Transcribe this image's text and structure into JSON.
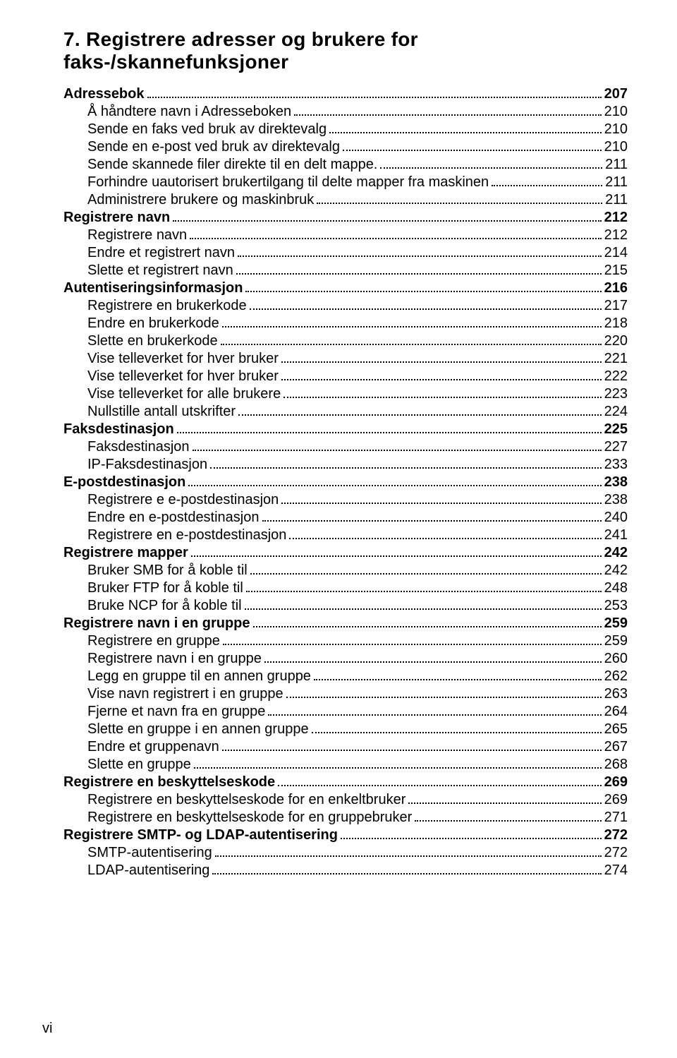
{
  "chapter": {
    "number": "7.",
    "title": "Registrere adresser og brukere for faks-/skannefunksjoner"
  },
  "toc": [
    {
      "level": 0,
      "label": "Adressebok",
      "page": "207"
    },
    {
      "level": 1,
      "label": "Å håndtere navn i Adresseboken",
      "page": "210"
    },
    {
      "level": 1,
      "label": "Sende en faks ved bruk av direktevalg",
      "page": "210"
    },
    {
      "level": 1,
      "label": "Sende en e-post ved bruk av direktevalg",
      "page": "210"
    },
    {
      "level": 1,
      "label": "Sende skannede filer direkte til en delt mappe.",
      "page": "211"
    },
    {
      "level": 1,
      "label": "Forhindre uautorisert brukertilgang til delte mapper fra maskinen",
      "page": "211"
    },
    {
      "level": 1,
      "label": "Administrere brukere og maskinbruk",
      "page": "211"
    },
    {
      "level": 0,
      "label": "Registrere navn",
      "page": "212"
    },
    {
      "level": 1,
      "label": "Registrere navn",
      "page": "212"
    },
    {
      "level": 1,
      "label": "Endre et registrert navn",
      "page": "214"
    },
    {
      "level": 1,
      "label": "Slette et registrert navn",
      "page": "215"
    },
    {
      "level": 0,
      "label": "Autentiseringsinformasjon",
      "page": "216"
    },
    {
      "level": 1,
      "label": "Registrere en brukerkode",
      "page": "217"
    },
    {
      "level": 1,
      "label": "Endre en brukerkode",
      "page": "218"
    },
    {
      "level": 1,
      "label": "Slette en brukerkode",
      "page": "220"
    },
    {
      "level": 1,
      "label": "Vise telleverket for hver bruker",
      "page": "221"
    },
    {
      "level": 1,
      "label": "Vise telleverket for hver bruker",
      "page": "222"
    },
    {
      "level": 1,
      "label": "Vise telleverket for alle brukere",
      "page": "223"
    },
    {
      "level": 1,
      "label": "Nullstille antall utskrifter",
      "page": "224"
    },
    {
      "level": 0,
      "label": "Faksdestinasjon",
      "page": "225"
    },
    {
      "level": 1,
      "label": "Faksdestinasjon",
      "page": "227"
    },
    {
      "level": 1,
      "label": "IP-Faksdestinasjon",
      "page": "233"
    },
    {
      "level": 0,
      "label": "E-postdestinasjon",
      "page": "238"
    },
    {
      "level": 1,
      "label": "Registrere e e-postdestinasjon",
      "page": "238"
    },
    {
      "level": 1,
      "label": "Endre en e-postdestinasjon",
      "page": "240"
    },
    {
      "level": 1,
      "label": "Registrere en e-postdestinasjon",
      "page": "241"
    },
    {
      "level": 0,
      "label": "Registrere mapper",
      "page": "242"
    },
    {
      "level": 1,
      "label": "Bruker SMB for å koble til",
      "page": "242"
    },
    {
      "level": 1,
      "label": "Bruker FTP for å koble til",
      "page": "248"
    },
    {
      "level": 1,
      "label": "Bruke NCP for å koble til",
      "page": "253"
    },
    {
      "level": 0,
      "label": "Registrere navn i en gruppe",
      "page": "259"
    },
    {
      "level": 1,
      "label": "Registrere en gruppe",
      "page": "259"
    },
    {
      "level": 1,
      "label": "Registrere navn i en gruppe",
      "page": "260"
    },
    {
      "level": 1,
      "label": "Legg en gruppe til en annen gruppe",
      "page": "262"
    },
    {
      "level": 1,
      "label": "Vise navn registrert i en gruppe",
      "page": "263"
    },
    {
      "level": 1,
      "label": "Fjerne et navn fra en gruppe",
      "page": "264"
    },
    {
      "level": 1,
      "label": "Slette en gruppe i en annen gruppe",
      "page": "265"
    },
    {
      "level": 1,
      "label": "Endre et gruppenavn",
      "page": "267"
    },
    {
      "level": 1,
      "label": "Slette en gruppe",
      "page": "268"
    },
    {
      "level": 0,
      "label": "Registrere en beskyttelseskode",
      "page": "269"
    },
    {
      "level": 1,
      "label": "Registrere en beskyttelseskode for en enkeltbruker",
      "page": "269"
    },
    {
      "level": 1,
      "label": "Registrere en beskyttelseskode for en gruppebruker",
      "page": "271"
    },
    {
      "level": 0,
      "label": "Registrere SMTP- og LDAP-autentisering",
      "page": "272"
    },
    {
      "level": 1,
      "label": "SMTP-autentisering",
      "page": "272"
    },
    {
      "level": 1,
      "label": "LDAP-autentisering",
      "page": "274"
    }
  ],
  "page_number": "vi"
}
